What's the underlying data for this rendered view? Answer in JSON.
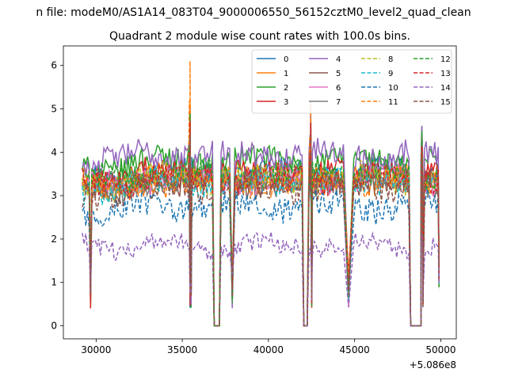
{
  "chart_data": {
    "type": "line",
    "suptitle": "n file: modeM0/AS1A14_083T04_9000006550_56152cztM0_level2_quad_clean",
    "title": "Quadrant 2 module wise count rates with 100.0s bins.",
    "xlabel": "",
    "ylabel": "",
    "x_offset_label": "+5.086e8",
    "xlim": [
      28100,
      50900
    ],
    "ylim": [
      -0.3,
      6.45
    ],
    "x_ticks": [
      30000,
      35000,
      40000,
      45000,
      50000
    ],
    "x_tick_labels": [
      "30000",
      "35000",
      "40000",
      "45000",
      "50000"
    ],
    "y_ticks": [
      0,
      1,
      2,
      3,
      4,
      5,
      6
    ],
    "y_tick_labels": [
      "0",
      "1",
      "2",
      "3",
      "4",
      "5",
      "6"
    ],
    "grid": false,
    "legend_position": "top-right",
    "legend_columns": 4,
    "series": [
      {
        "name": "0",
        "color": "#1f77b4",
        "dash": "solid",
        "level": 3.5
      },
      {
        "name": "1",
        "color": "#ff7f0e",
        "dash": "solid",
        "level": 3.4
      },
      {
        "name": "2",
        "color": "#2ca02c",
        "dash": "solid",
        "level": 3.8
      },
      {
        "name": "3",
        "color": "#d62728",
        "dash": "solid",
        "level": 3.5
      },
      {
        "name": "4",
        "color": "#9467bd",
        "dash": "solid",
        "level": 3.95
      },
      {
        "name": "5",
        "color": "#8c564b",
        "dash": "solid",
        "level": 3.3
      },
      {
        "name": "6",
        "color": "#e377c2",
        "dash": "solid",
        "level": 3.4
      },
      {
        "name": "7",
        "color": "#7f7f7f",
        "dash": "solid",
        "level": 3.35
      },
      {
        "name": "8",
        "color": "#bcbd22",
        "dash": "dashed",
        "level": 3.4
      },
      {
        "name": "9",
        "color": "#17becf",
        "dash": "dashed",
        "level": 3.3
      },
      {
        "name": "10",
        "color": "#1f77b4",
        "dash": "dashed",
        "level": 2.75
      },
      {
        "name": "11",
        "color": "#ff7f0e",
        "dash": "dashed",
        "level": 3.3
      },
      {
        "name": "12",
        "color": "#2ca02c",
        "dash": "dashed",
        "level": 3.5
      },
      {
        "name": "13",
        "color": "#d62728",
        "dash": "dashed",
        "level": 3.4
      },
      {
        "name": "14",
        "color": "#9467bd",
        "dash": "dashed",
        "level": 1.85
      },
      {
        "name": "15",
        "color": "#8c564b",
        "dash": "dashed",
        "level": 3.2
      }
    ],
    "segments": [
      {
        "x_start": 29200,
        "x_end": 29600,
        "rise": true
      },
      {
        "x_start": 29750,
        "x_end": 35350,
        "rise": false
      },
      {
        "x_start": 35550,
        "x_end": 36750,
        "rise": false
      },
      {
        "x_start": 37250,
        "x_end": 37750,
        "rise": false
      },
      {
        "x_start": 38050,
        "x_end": 41950,
        "rise": false
      },
      {
        "x_start": 42350,
        "x_end": 44350,
        "rise": false
      },
      {
        "x_start": 44950,
        "x_end": 48150,
        "rise": false
      },
      {
        "x_start": 48950,
        "x_end": 49900,
        "rise": false
      }
    ],
    "gaps_zero": [
      {
        "x_start": 36850,
        "x_end": 37150
      },
      {
        "x_start": 42050,
        "x_end": 42250
      },
      {
        "x_start": 48250,
        "x_end": 48850
      }
    ],
    "spikes": [
      {
        "x": 35450,
        "peak": 6.1,
        "series": "11"
      },
      {
        "x": 42450,
        "peak": 5.15,
        "series": "11"
      },
      {
        "x": 48900,
        "peak": 4.55,
        "series": "12"
      }
    ]
  }
}
